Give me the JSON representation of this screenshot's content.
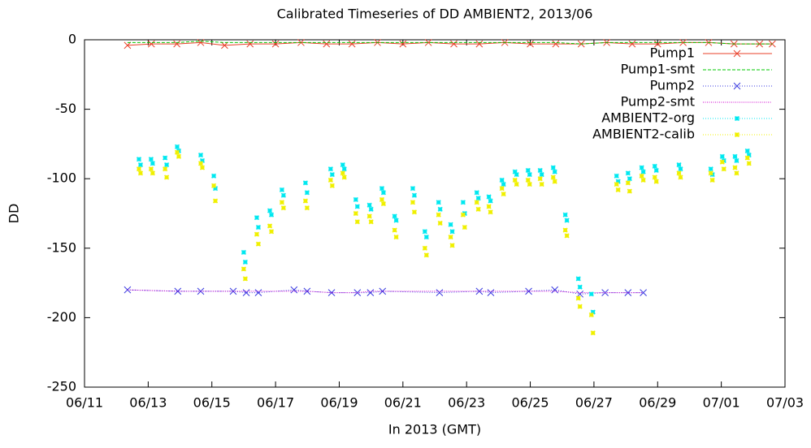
{
  "chart_data": {
    "type": "line",
    "title": "Calibrated Timeseries of DD AMBIENT2, 2013/06",
    "x_label": "In 2013 (GMT)",
    "y_label": "DD",
    "xlim": [
      0,
      22
    ],
    "ylim": [
      -250,
      0
    ],
    "xticks": [
      {
        "value": 0,
        "label": "06/11"
      },
      {
        "value": 2,
        "label": "06/13"
      },
      {
        "value": 4,
        "label": "06/15"
      },
      {
        "value": 6,
        "label": "06/17"
      },
      {
        "value": 8,
        "label": "06/19"
      },
      {
        "value": 10,
        "label": "06/21"
      },
      {
        "value": 12,
        "label": "06/23"
      },
      {
        "value": 14,
        "label": "06/25"
      },
      {
        "value": 16,
        "label": "06/27"
      },
      {
        "value": 18,
        "label": "06/29"
      },
      {
        "value": 20,
        "label": "07/01"
      },
      {
        "value": 22,
        "label": "07/03"
      }
    ],
    "yticks": [
      0,
      -50,
      -100,
      -150,
      -200,
      -250
    ],
    "grid": false,
    "legend": "top-right",
    "series": [
      {
        "name": "Pump1",
        "color": "#e8402a",
        "style": "linespoints",
        "marker": "x",
        "x": [
          1.35,
          2.1,
          2.9,
          3.65,
          4.4,
          5.2,
          6.0,
          6.8,
          7.6,
          8.4,
          9.2,
          10.0,
          10.8,
          11.6,
          12.4,
          13.2,
          14.0,
          14.8,
          15.6,
          16.4,
          17.2,
          18.0,
          18.8,
          19.6,
          20.4,
          21.2,
          21.6
        ],
        "values": [
          -4,
          -3,
          -3,
          -2,
          -4,
          -3,
          -3,
          -2,
          -3,
          -3,
          -2,
          -3,
          -2,
          -3,
          -3,
          -2,
          -3,
          -3,
          -3,
          -2,
          -3,
          -3,
          -2,
          -2,
          -3,
          -3,
          -3
        ]
      },
      {
        "name": "Pump1-smt",
        "color": "#00c800",
        "style": "lines",
        "dash": "4,2",
        "x": [
          1.35,
          2.1,
          2.9,
          3.65,
          4.4,
          5.2,
          6.0,
          6.8,
          7.6,
          8.4,
          9.2,
          10.0,
          10.8,
          11.6,
          12.4,
          13.2,
          14.0,
          14.8,
          15.6,
          16.4,
          17.2,
          18.0,
          18.8,
          19.6,
          20.4,
          21.2,
          21.6
        ],
        "values": [
          -2,
          -2,
          -2,
          -1,
          -2,
          -2,
          -2,
          -2,
          -2,
          -2,
          -2,
          -2,
          -2,
          -2,
          -2,
          -2,
          -2,
          -2,
          -3,
          -2,
          -2,
          -2,
          -2,
          -2,
          -3,
          -3,
          -3
        ]
      },
      {
        "name": "Pump2",
        "color": "#3a3ae0",
        "style": "linespoints",
        "marker": "x",
        "dash": "1,2",
        "x": [
          1.35,
          2.93,
          3.65,
          4.67,
          5.08,
          5.46,
          6.58,
          6.99,
          7.76,
          8.57,
          8.98,
          9.36,
          11.15,
          12.4,
          12.76,
          13.95,
          14.77,
          15.56,
          16.35,
          17.07,
          17.55
        ],
        "values": [
          -180,
          -181,
          -181,
          -181,
          -182,
          -182,
          -180,
          -181,
          -182,
          -182,
          -182,
          -181,
          -182,
          -181,
          -182,
          -181,
          -180,
          -183,
          -182,
          -182,
          -182
        ]
      },
      {
        "name": "Pump2-smt",
        "color": "#d000d0",
        "style": "lines",
        "dash": "1,1.5",
        "x": [
          1.35,
          2.93,
          3.65,
          4.67,
          5.08,
          5.46,
          6.58,
          6.99,
          7.76,
          8.57,
          8.98,
          9.36,
          11.15,
          12.4,
          12.76,
          13.95,
          14.77,
          15.56,
          16.35,
          17.07,
          17.55
        ],
        "values": [
          -180,
          -181,
          -181,
          -181,
          -181,
          -181,
          -181,
          -181,
          -182,
          -182,
          -181,
          -181,
          -181,
          -181,
          -181,
          -181,
          -181,
          -182,
          -182,
          -182,
          -182
        ]
      },
      {
        "name": "AMBIENT2-org",
        "color": "#00e8f0",
        "style": "points",
        "marker": "star",
        "x": [
          1.71,
          1.76,
          2.09,
          2.14,
          2.53,
          2.58,
          2.91,
          2.96,
          3.65,
          3.7,
          4.06,
          4.11,
          5.0,
          5.05,
          5.41,
          5.46,
          5.82,
          5.87,
          6.2,
          6.25,
          6.94,
          6.99,
          7.73,
          7.78,
          8.11,
          8.16,
          8.52,
          8.57,
          8.95,
          9.0,
          9.34,
          9.39,
          9.74,
          9.79,
          10.31,
          10.36,
          10.69,
          10.74,
          11.12,
          11.17,
          11.5,
          11.55,
          11.89,
          11.94,
          12.32,
          12.37,
          12.7,
          12.75,
          13.11,
          13.16,
          13.52,
          13.57,
          13.93,
          13.98,
          14.31,
          14.36,
          14.72,
          14.77,
          15.1,
          15.15,
          15.51,
          15.56,
          15.92,
          15.97,
          16.71,
          16.76,
          17.07,
          17.12,
          17.5,
          17.55,
          17.91,
          17.96,
          18.67,
          18.72,
          19.67,
          19.72,
          20.03,
          20.08,
          20.43,
          20.48,
          20.82,
          20.87
        ],
        "values": [
          -86,
          -90,
          -86,
          -89,
          -85,
          -90,
          -77,
          -80,
          -83,
          -87,
          -98,
          -107,
          -153,
          -160,
          -128,
          -135,
          -123,
          -126,
          -108,
          -112,
          -103,
          -110,
          -93,
          -97,
          -90,
          -93,
          -115,
          -120,
          -119,
          -122,
          -107,
          -110,
          -127,
          -130,
          -107,
          -112,
          -138,
          -142,
          -117,
          -122,
          -133,
          -138,
          -117,
          -125,
          -110,
          -114,
          -113,
          -116,
          -101,
          -104,
          -95,
          -97,
          -94,
          -97,
          -94,
          -97,
          -92,
          -95,
          -126,
          -130,
          -172,
          -178,
          -183,
          -196,
          -98,
          -102,
          -96,
          -100,
          -92,
          -95,
          -91,
          -94,
          -90,
          -93,
          -93,
          -97,
          -84,
          -87,
          -84,
          -87,
          -80,
          -83
        ]
      },
      {
        "name": "AMBIENT2-calib",
        "color": "#f0f000",
        "style": "points",
        "marker": "star",
        "x": [
          1.71,
          1.76,
          2.09,
          2.14,
          2.53,
          2.58,
          2.91,
          2.96,
          3.65,
          3.7,
          4.06,
          4.11,
          5.0,
          5.05,
          5.41,
          5.46,
          5.82,
          5.87,
          6.2,
          6.25,
          6.94,
          6.99,
          7.73,
          7.78,
          8.11,
          8.16,
          8.52,
          8.57,
          8.95,
          9.0,
          9.34,
          9.39,
          9.74,
          9.79,
          10.31,
          10.36,
          10.69,
          10.74,
          11.12,
          11.17,
          11.5,
          11.55,
          11.89,
          11.94,
          12.32,
          12.37,
          12.7,
          12.75,
          13.11,
          13.16,
          13.52,
          13.57,
          13.93,
          13.98,
          14.31,
          14.36,
          14.72,
          14.77,
          15.1,
          15.15,
          15.51,
          15.56,
          15.92,
          15.97,
          16.71,
          16.76,
          17.07,
          17.12,
          17.5,
          17.55,
          17.91,
          17.96,
          18.67,
          18.72,
          19.67,
          19.72,
          20.03,
          20.08,
          20.43,
          20.48,
          20.82,
          20.87
        ],
        "values": [
          -93,
          -96,
          -93,
          -96,
          -93,
          -99,
          -81,
          -84,
          -89,
          -92,
          -105,
          -116,
          -165,
          -172,
          -140,
          -147,
          -134,
          -138,
          -117,
          -121,
          -116,
          -121,
          -101,
          -105,
          -96,
          -99,
          -125,
          -131,
          -127,
          -131,
          -115,
          -118,
          -137,
          -142,
          -117,
          -124,
          -150,
          -155,
          -126,
          -132,
          -142,
          -148,
          -126,
          -135,
          -117,
          -122,
          -120,
          -124,
          -107,
          -111,
          -101,
          -104,
          -101,
          -104,
          -100,
          -104,
          -99,
          -102,
          -137,
          -141,
          -186,
          -192,
          -198,
          -211,
          -104,
          -108,
          -103,
          -109,
          -98,
          -101,
          -99,
          -102,
          -96,
          -99,
          -96,
          -101,
          -88,
          -93,
          -92,
          -96,
          -85,
          -89
        ]
      }
    ]
  }
}
